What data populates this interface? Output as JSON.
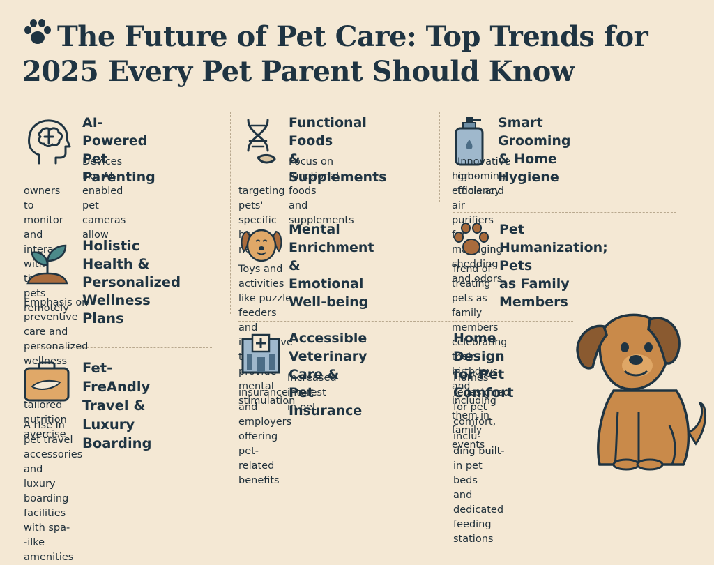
{
  "title": {
    "line1": "The Future of Pet Care: Top Trends for",
    "line2": "2025 Every Pet Parent Should Know",
    "icon": "paw-icon"
  },
  "colors": {
    "background": "#f4e8d4",
    "text": "#1f3442",
    "accent_teal": "#4c8a8a",
    "accent_orange": "#d59a5e",
    "dog_brown": "#c98a4a"
  },
  "trends": [
    {
      "id": "ai",
      "icon": "brain-head-icon",
      "title_line1": "AI-Powered",
      "title_line2": "Pet Parenting",
      "desc": [
        "Devices like AI-enabled",
        "pet cameras allow",
        "owners to monitor and interact",
        "with their pets remotely"
      ]
    },
    {
      "id": "foods",
      "icon": "dna-icon",
      "title_line1": "Functional Foods",
      "title_line2": "& Supplements",
      "desc": [
        "Focus on functional foods",
        "and supplements",
        "targeting pets' specific health needs"
      ]
    },
    {
      "id": "grooming",
      "icon": "spray-bottle-icon",
      "title_line1": "Smart Grooming",
      "title_line2": "& Home Hygiene",
      "desc": [
        "Innovative grooming tools and",
        "high-efficiency air purifiers for",
        "managing shedding and odors"
      ]
    },
    {
      "id": "holistic",
      "icon": "plant-sprout-icon",
      "title_line1": "Holistic Health &",
      "title_line2": "Personalized",
      "title_line3": "Wellness Plans",
      "desc": [
        "Emphasis on preventive care and",
        "personalized wellness plans",
        "including tailored nutrition avercise"
      ]
    },
    {
      "id": "mental",
      "icon": "dog-face-icon",
      "title_line1": "Mental Enrichment",
      "title_line2": "& Emotional Well-being",
      "desc": [
        "Toys and activities like puzzle feeders",
        "and interactive toys to provide",
        "mental stimulation"
      ]
    },
    {
      "id": "humanization",
      "icon": "paw-print-icon",
      "title_line1": "Pet Humanization; Pets",
      "title_line2": "as Family Members",
      "desc": [
        "Trend of treating pets as family members",
        "celebrating their birthdays, and including",
        "them in family events"
      ]
    },
    {
      "id": "travel",
      "icon": "suitcase-icon",
      "title_line1": "Fet-FreAndly",
      "title_line2": "Travel & Luxury",
      "title_line3": "Boarding",
      "desc": [
        "A rise in pet travel accessories and",
        "luxury boarding facilities with spa-",
        "-ilke amenities"
      ]
    },
    {
      "id": "vet",
      "icon": "hospital-icon",
      "title_line1": "Accessible Veterinary",
      "title_line2": "Care & Pet Insurance",
      "desc": [
        "Increased interest in pet",
        "insurance and employers offering",
        "pet-related benefits"
      ]
    },
    {
      "id": "home",
      "icon": "house-icon",
      "title_line1": "Home Design",
      "title_line2": "for Pet Comfort",
      "desc": [
        "Homes redesigned",
        "for pet comfort, inclu-",
        "ding built-in pet beds",
        "and dedicated",
        "feeding stations"
      ]
    }
  ],
  "illustration": {
    "icon": "sitting-dog-illustration"
  }
}
